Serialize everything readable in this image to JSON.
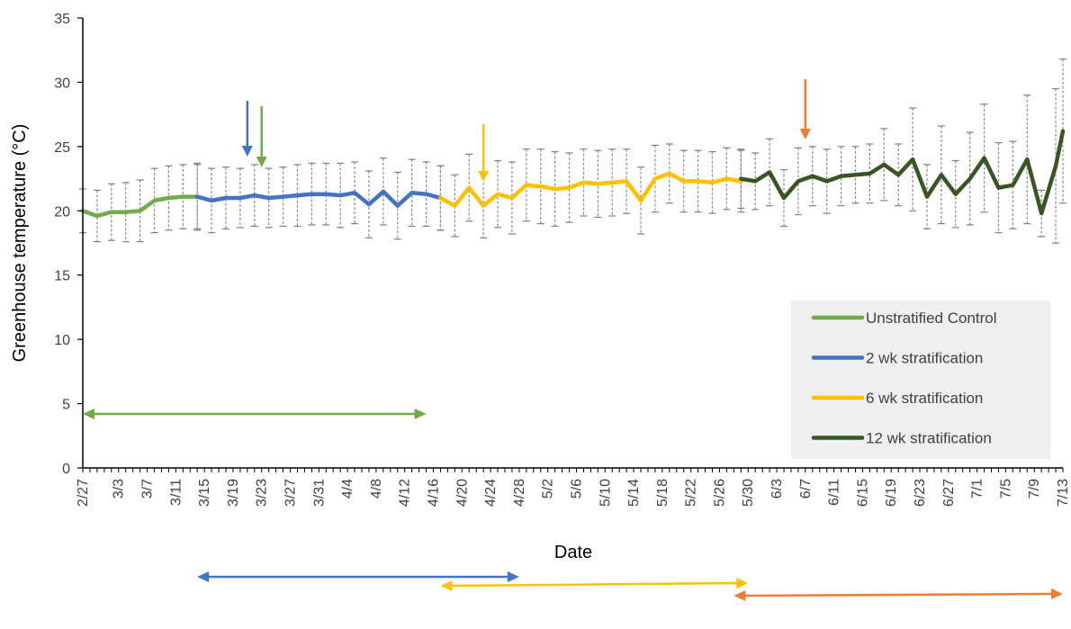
{
  "chart_data": {
    "type": "line",
    "title": "",
    "xlabel": "Date",
    "ylabel": "Greenhouse temperature (°C)",
    "ylim": [
      0,
      35
    ],
    "yticks": [
      "0",
      "5",
      "10",
      "15",
      "20",
      "25",
      "30",
      "35"
    ],
    "x_start": "2/27",
    "x_end": "7/13",
    "xticks": [
      "2/27",
      "3/3",
      "3/7",
      "3/11",
      "3/15",
      "3/19",
      "3/23",
      "3/27",
      "3/31",
      "4/4",
      "4/8",
      "4/12",
      "4/16",
      "4/20",
      "4/24",
      "4/28",
      "5/2",
      "5/6",
      "5/10",
      "5/14",
      "5/18",
      "5/22",
      "5/26",
      "5/30",
      "6/3",
      "6/7",
      "6/11",
      "6/15",
      "6/19",
      "6/23",
      "6/27",
      "7/1",
      "7/5",
      "7/9",
      "7/13"
    ],
    "grid": false,
    "legend_position": "bottom-right",
    "error_bars": "dashed",
    "series": [
      {
        "name": "Unstratified Control",
        "color": "#70ad47",
        "x": [
          "2/27",
          "2/29",
          "3/2",
          "3/4",
          "3/6",
          "3/8",
          "3/10",
          "3/12",
          "3/14"
        ],
        "y": [
          20.0,
          19.6,
          19.9,
          19.9,
          20.0,
          20.8,
          21.0,
          21.1,
          21.1
        ],
        "error": [
          1.7,
          2.0,
          2.2,
          2.3,
          2.4,
          2.5,
          2.5,
          2.5,
          2.6
        ]
      },
      {
        "name": "2 wk stratification",
        "color": "#4472c4",
        "x": [
          "3/14",
          "3/16",
          "3/18",
          "3/20",
          "3/22",
          "3/24",
          "3/26",
          "3/28",
          "3/30",
          "4/1",
          "4/3",
          "4/5",
          "4/7",
          "4/9",
          "4/11",
          "4/13",
          "4/15",
          "4/17"
        ],
        "y": [
          21.1,
          20.8,
          21.0,
          21.0,
          21.2,
          21.0,
          21.1,
          21.2,
          21.3,
          21.3,
          21.2,
          21.4,
          20.5,
          21.5,
          20.4,
          21.4,
          21.3,
          21.0
        ],
        "error": [
          2.5,
          2.5,
          2.4,
          2.3,
          2.4,
          2.3,
          2.3,
          2.4,
          2.4,
          2.4,
          2.5,
          2.4,
          2.6,
          2.6,
          2.6,
          2.6,
          2.5,
          2.5
        ]
      },
      {
        "name": "6 wk stratification",
        "color": "#ffc000",
        "x": [
          "4/17",
          "4/19",
          "4/21",
          "4/23",
          "4/25",
          "4/27",
          "4/29",
          "5/1",
          "5/3",
          "5/5",
          "5/7",
          "5/9",
          "5/11",
          "5/13",
          "5/15",
          "5/17",
          "5/19",
          "5/21",
          "5/23",
          "5/25",
          "5/27",
          "5/29"
        ],
        "y": [
          21.0,
          20.4,
          21.8,
          20.4,
          21.3,
          21.0,
          22.0,
          21.9,
          21.7,
          21.8,
          22.2,
          22.1,
          22.2,
          22.3,
          20.8,
          22.5,
          22.9,
          22.3,
          22.3,
          22.2,
          22.5,
          22.3
        ],
        "error": [
          2.5,
          2.4,
          2.6,
          2.5,
          2.6,
          2.8,
          2.8,
          2.9,
          2.9,
          2.7,
          2.6,
          2.6,
          2.6,
          2.5,
          2.6,
          2.6,
          2.3,
          2.4,
          2.4,
          2.4,
          2.4,
          2.4
        ]
      },
      {
        "name": "12 wk stratification",
        "color": "#375623",
        "x": [
          "5/29",
          "5/31",
          "6/2",
          "6/4",
          "6/6",
          "6/8",
          "6/10",
          "6/12",
          "6/14",
          "6/16",
          "6/18",
          "6/20",
          "6/22",
          "6/24",
          "6/26",
          "6/28",
          "6/30",
          "7/2",
          "7/4",
          "7/6",
          "7/8",
          "7/10",
          "7/12",
          "7/13"
        ],
        "y": [
          22.5,
          22.3,
          23.0,
          21.0,
          22.3,
          22.7,
          22.3,
          22.7,
          22.8,
          22.9,
          23.6,
          22.8,
          24.0,
          21.1,
          22.8,
          21.3,
          22.5,
          24.1,
          21.8,
          22.0,
          24.0,
          19.8,
          23.5,
          26.2
        ],
        "error": [
          2.3,
          2.2,
          2.6,
          2.2,
          2.6,
          2.3,
          2.5,
          2.3,
          2.2,
          2.3,
          2.8,
          2.4,
          4.0,
          2.5,
          3.8,
          2.6,
          3.6,
          4.2,
          3.5,
          3.4,
          5.0,
          1.8,
          6.0,
          5.6
        ]
      }
    ],
    "annotations": [
      {
        "type": "down-arrow",
        "x": "3/21",
        "color": "#4472c4"
      },
      {
        "type": "down-arrow",
        "x": "3/23",
        "color": "#70ad47"
      },
      {
        "type": "down-arrow",
        "x": "4/23",
        "color": "#ffc000"
      },
      {
        "type": "down-arrow",
        "x": "6/7",
        "color": "#ed7d31"
      }
    ],
    "range_arrows": [
      {
        "from": "2/27",
        "to": "4/15",
        "color": "#70ad47"
      },
      {
        "from": "3/14",
        "to": "4/28",
        "color": "#4472c4"
      },
      {
        "from": "4/17",
        "to": "5/30",
        "color": "#ffc000"
      },
      {
        "from": "5/28",
        "to": "7/13",
        "color": "#ed7d31"
      }
    ]
  }
}
